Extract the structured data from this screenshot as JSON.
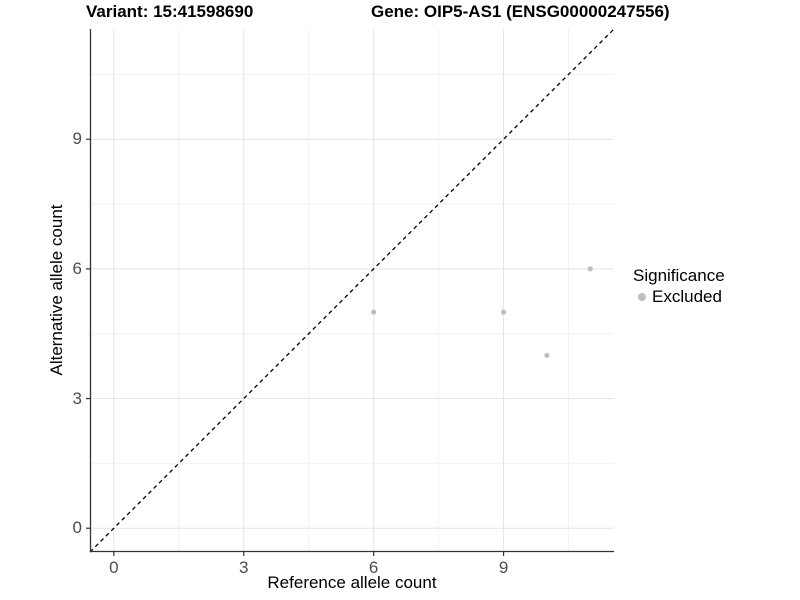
{
  "titles": {
    "variant": "Variant: 15:41598690",
    "gene": "Gene: OIP5-AS1 (ENSG00000247556)"
  },
  "chart_data": {
    "type": "scatter",
    "xlabel": "Reference allele count",
    "ylabel": "Alternative allele count",
    "xlim": [
      -0.55,
      11.55
    ],
    "ylim": [
      -0.55,
      11.55
    ],
    "x_major_ticks": [
      0,
      3,
      6,
      9
    ],
    "y_major_ticks": [
      0,
      3,
      6,
      9
    ],
    "x_minor_gridlines": [
      1.5,
      4.5,
      7.5,
      10.5
    ],
    "y_minor_gridlines": [
      1.5,
      4.5,
      7.5,
      10.5
    ],
    "grid": "on",
    "legend_position": "right",
    "identity_line": {
      "style": "dashed",
      "color": "#000000",
      "from": [
        -0.55,
        -0.55
      ],
      "to": [
        11.55,
        11.55
      ]
    },
    "series": [
      {
        "name": "Excluded",
        "color": "#bebebe",
        "points": [
          {
            "x": 6,
            "y": 5
          },
          {
            "x": 9,
            "y": 5
          },
          {
            "x": 10,
            "y": 4
          },
          {
            "x": 11,
            "y": 6
          }
        ]
      }
    ],
    "legend": {
      "title": "Significance",
      "entries": [
        {
          "label": "Excluded",
          "color": "#bebebe"
        }
      ]
    }
  },
  "colors": {
    "background": "#ffffff",
    "axis_line": "#333333",
    "tick_label": "#4d4d4d",
    "grid_major": "#e5e5e5",
    "grid_minor": "#f2f2f2",
    "title_text": "#000000"
  }
}
